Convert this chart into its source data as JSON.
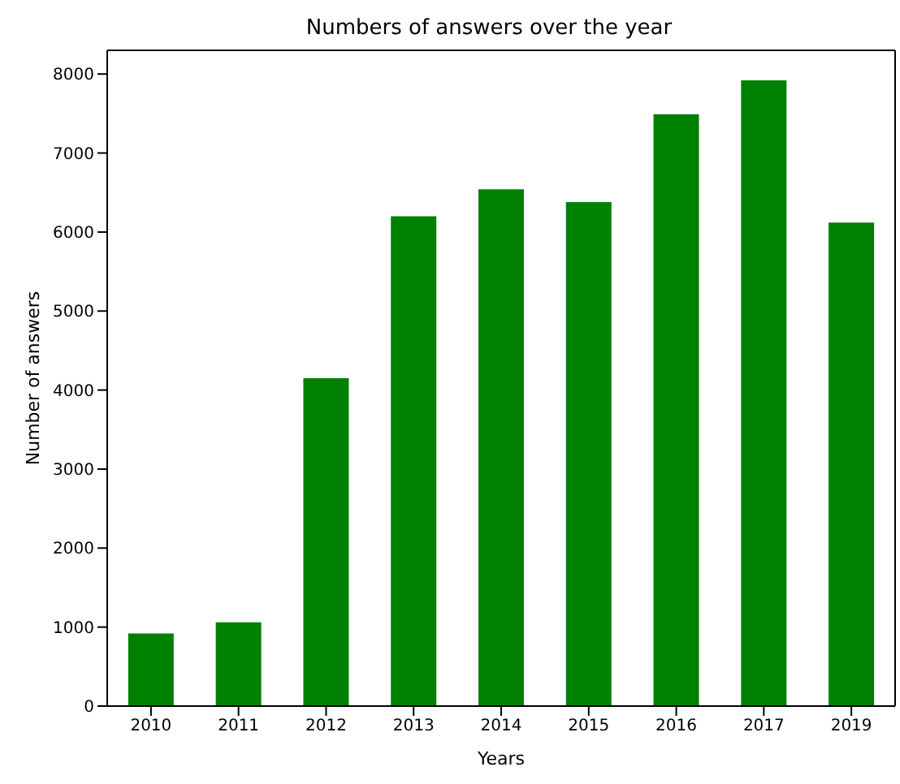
{
  "chart_data": {
    "type": "bar",
    "title": "Numbers of answers over the year",
    "xlabel": "Years",
    "ylabel": "Number of answers",
    "categories": [
      "2010",
      "2011",
      "2012",
      "2013",
      "2014",
      "2015",
      "2016",
      "2017",
      "2019"
    ],
    "values": [
      920,
      1060,
      4150,
      6200,
      6540,
      6380,
      7490,
      7920,
      6120
    ],
    "color": "#008000",
    "ylim": [
      0,
      8300
    ],
    "yticks": [
      0,
      1000,
      2000,
      3000,
      4000,
      5000,
      6000,
      7000,
      8000
    ],
    "grid": false,
    "legend": false
  }
}
